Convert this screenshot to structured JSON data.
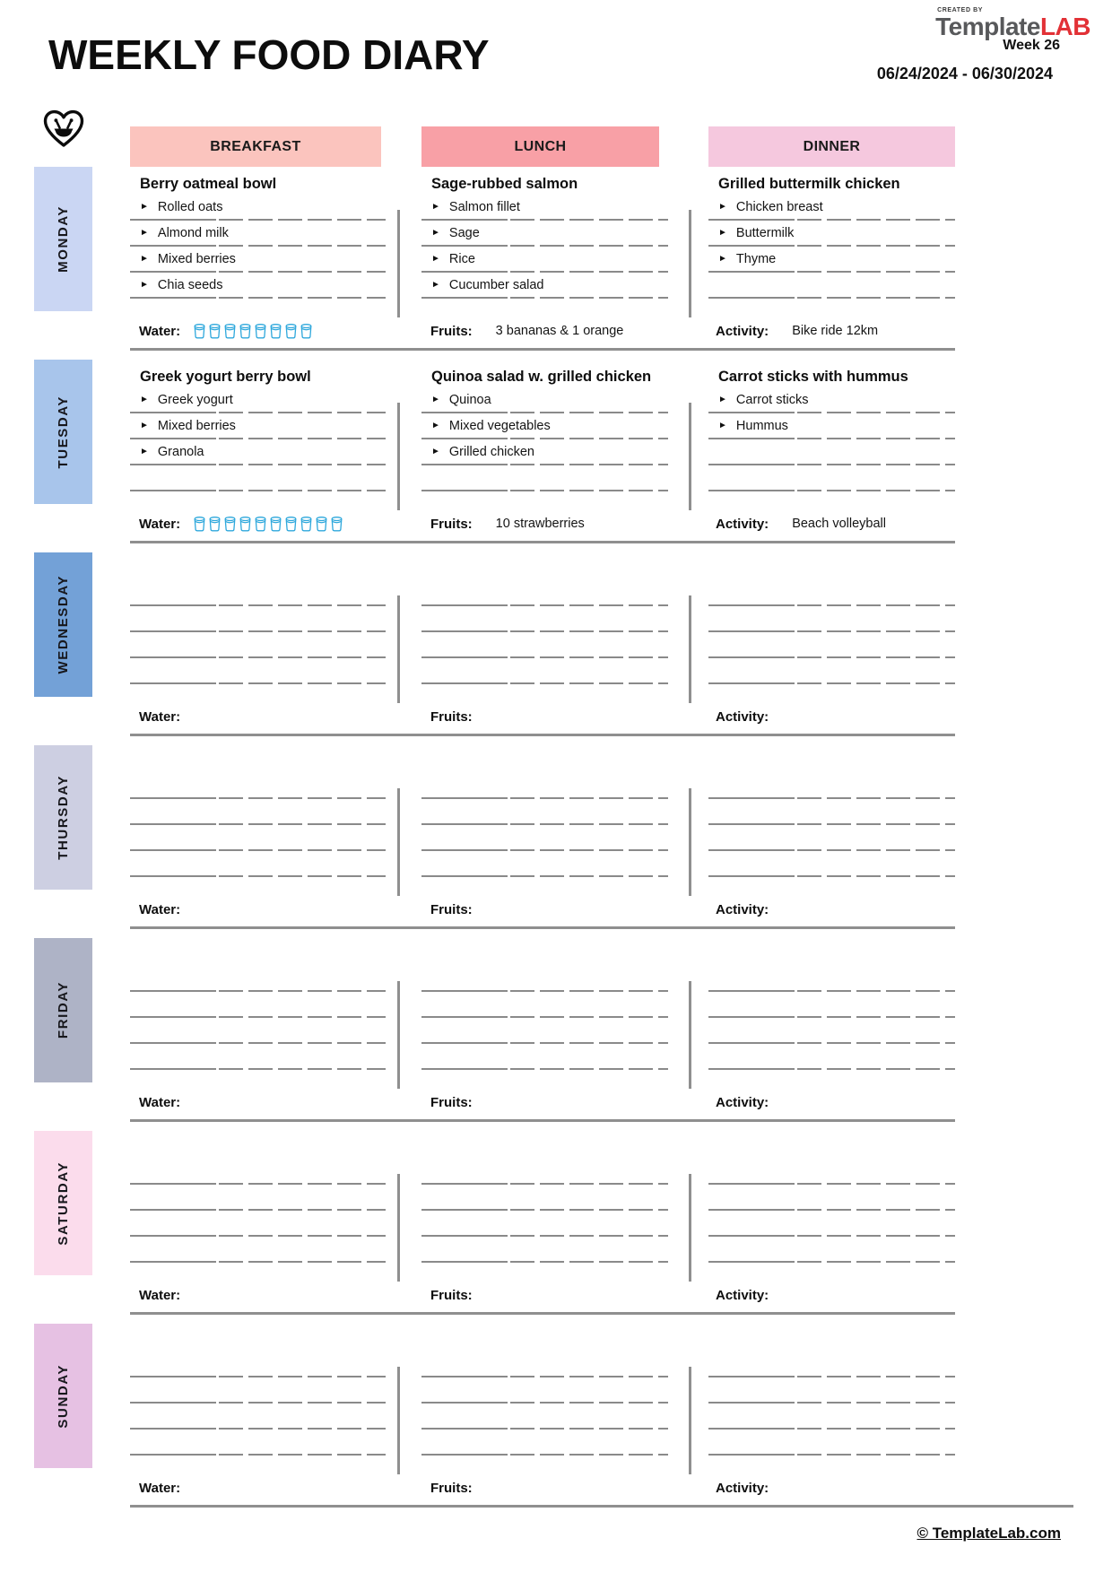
{
  "header": {
    "title": "WEEKLY FOOD DIARY",
    "logo": {
      "created_by": "CREATED BY",
      "brand_gray": "Template",
      "brand_red": "LAB"
    },
    "week": "Week 26",
    "date_range": "06/24/2024 - 06/30/2024"
  },
  "columns": [
    {
      "label": "BREAKFAST",
      "color": "#FBC4BE"
    },
    {
      "label": "LUNCH",
      "color": "#F8A0A6"
    },
    {
      "label": "DINNER",
      "color": "#F5C8DE"
    }
  ],
  "labels": {
    "water": "Water:",
    "fruits": "Fruits:",
    "activity": "Activity:"
  },
  "icons": {
    "bullet": "►",
    "heart_bowl": "heart-with-food-bowl",
    "water_cup": "water-glass",
    "water_cup_color": "#2FA8DC"
  },
  "lines_per_meal": 4,
  "days": [
    {
      "name": "MONDAY",
      "color": "#CAD6F3",
      "meals": [
        {
          "title": "Berry oatmeal bowl",
          "items": [
            "Rolled oats",
            "Almond milk",
            "Mixed berries",
            "Chia seeds"
          ]
        },
        {
          "title": "Sage-rubbed salmon",
          "items": [
            "Salmon fillet",
            "Sage",
            "Rice",
            "Cucumber salad"
          ]
        },
        {
          "title": "Grilled buttermilk chicken",
          "items": [
            "Chicken breast",
            "Buttermilk",
            "Thyme"
          ]
        }
      ],
      "water_cups": 8,
      "fruits": "3 bananas & 1 orange",
      "activity": "Bike ride 12km"
    },
    {
      "name": "TUESDAY",
      "color": "#A8C5EB",
      "meals": [
        {
          "title": "Greek yogurt berry bowl",
          "items": [
            "Greek yogurt",
            "Mixed berries",
            "Granola"
          ]
        },
        {
          "title": "Quinoa salad w. grilled chicken",
          "items": [
            "Quinoa",
            "Mixed vegetables",
            "Grilled chicken"
          ]
        },
        {
          "title": "Carrot sticks with hummus",
          "items": [
            "Carrot sticks",
            "Hummus"
          ]
        }
      ],
      "water_cups": 10,
      "fruits": "10 strawberries",
      "activity": "Beach volleyball"
    },
    {
      "name": "WEDNESDAY",
      "color": "#73A1D7",
      "meals": [
        {
          "title": "",
          "items": []
        },
        {
          "title": "",
          "items": []
        },
        {
          "title": "",
          "items": []
        }
      ],
      "water_cups": 0,
      "fruits": "",
      "activity": ""
    },
    {
      "name": "THURSDAY",
      "color": "#CDCFE2",
      "meals": [
        {
          "title": "",
          "items": []
        },
        {
          "title": "",
          "items": []
        },
        {
          "title": "",
          "items": []
        }
      ],
      "water_cups": 0,
      "fruits": "",
      "activity": ""
    },
    {
      "name": "FRIDAY",
      "color": "#AEB3C6",
      "meals": [
        {
          "title": "",
          "items": []
        },
        {
          "title": "",
          "items": []
        },
        {
          "title": "",
          "items": []
        }
      ],
      "water_cups": 0,
      "fruits": "",
      "activity": ""
    },
    {
      "name": "SATURDAY",
      "color": "#FBDCEC",
      "meals": [
        {
          "title": "",
          "items": []
        },
        {
          "title": "",
          "items": []
        },
        {
          "title": "",
          "items": []
        }
      ],
      "water_cups": 0,
      "fruits": "",
      "activity": ""
    },
    {
      "name": "SUNDAY",
      "color": "#E6C1E3",
      "meals": [
        {
          "title": "",
          "items": []
        },
        {
          "title": "",
          "items": []
        },
        {
          "title": "",
          "items": []
        }
      ],
      "water_cups": 0,
      "fruits": "",
      "activity": ""
    }
  ],
  "footer": {
    "copyright": "© TemplateLab.com"
  }
}
